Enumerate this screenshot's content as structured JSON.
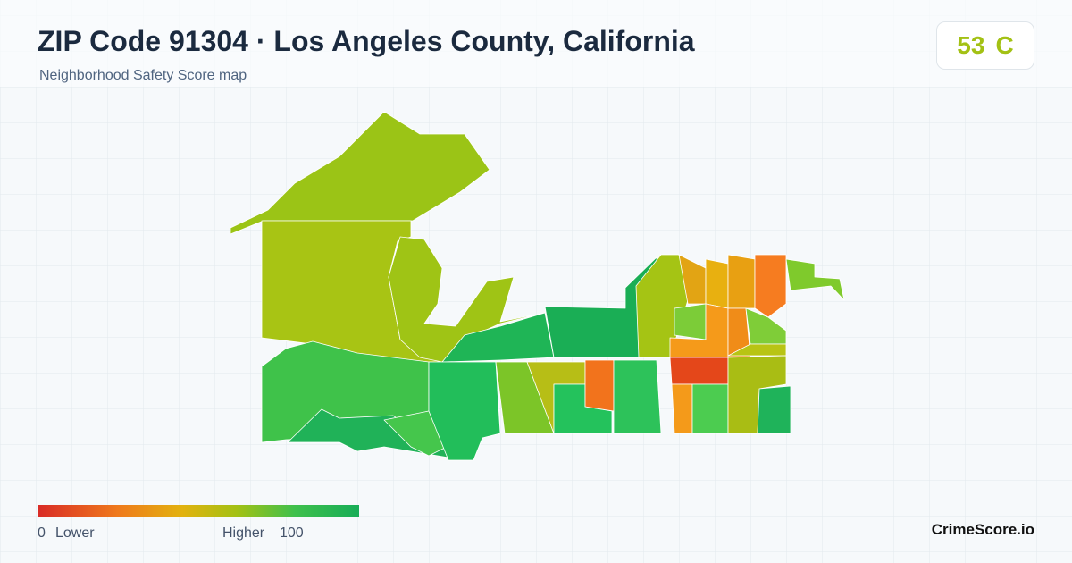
{
  "header": {
    "title": "ZIP Code 91304 · Los Angeles County, California",
    "subtitle": "Neighborhood Safety Score map"
  },
  "score": {
    "value": 53,
    "grade": "C"
  },
  "legend": {
    "min": 0,
    "min_label": "Lower",
    "max_label": "Higher",
    "max": 100
  },
  "brand": "CrimeScore.io"
}
